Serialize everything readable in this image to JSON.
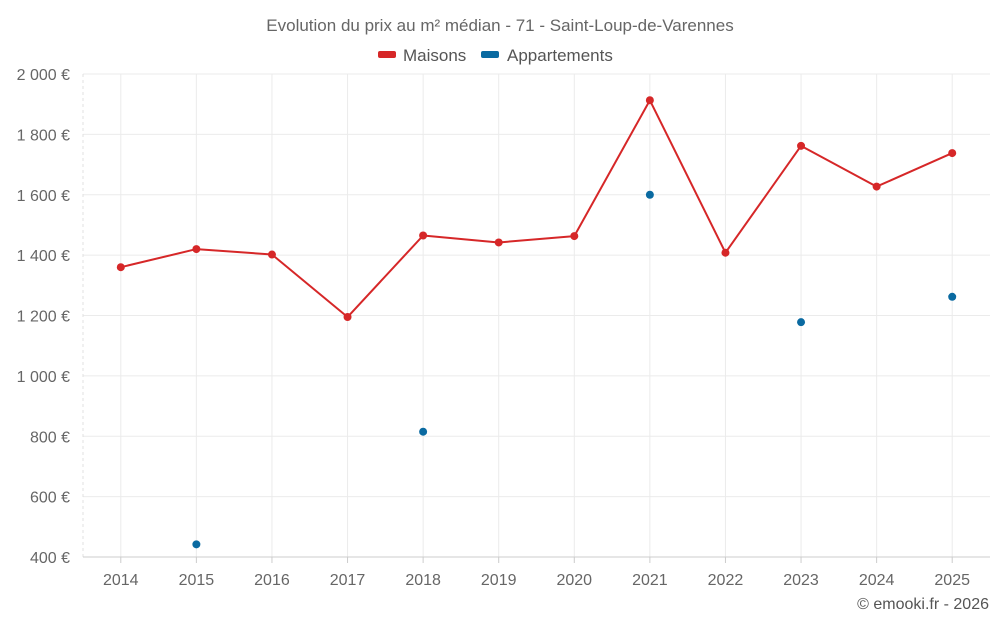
{
  "chart_data": {
    "type": "line",
    "title": "Evolution du prix au m² médian - 71 - Saint-Loup-de-Varennes",
    "categories": [
      "2014",
      "2015",
      "2016",
      "2017",
      "2018",
      "2019",
      "2020",
      "2021",
      "2022",
      "2023",
      "2024",
      "2025"
    ],
    "series": [
      {
        "name": "Maisons",
        "color": "#d62728",
        "mode": "lines+markers",
        "values": [
          1360,
          1420,
          1402,
          1195,
          1465,
          1442,
          1463,
          1913,
          1408,
          1762,
          1627,
          1738
        ]
      },
      {
        "name": "Appartements",
        "color": "#0a6aa1",
        "mode": "markers",
        "values": [
          null,
          442,
          null,
          null,
          815,
          null,
          null,
          1600,
          null,
          1178,
          null,
          1262
        ]
      }
    ],
    "ylim": [
      400,
      2000
    ],
    "yticks": [
      400,
      600,
      800,
      1000,
      1200,
      1400,
      1600,
      1800,
      2000
    ],
    "ytick_labels": [
      "400 €",
      "600 €",
      "800 €",
      "1 000 €",
      "1 200 €",
      "1 400 €",
      "1 600 €",
      "1 800 €",
      "2 000 €"
    ],
    "xlabel": "",
    "ylabel": "",
    "grid": true,
    "legend_position": "top-center"
  },
  "credit": "© emooki.fr - 2026"
}
